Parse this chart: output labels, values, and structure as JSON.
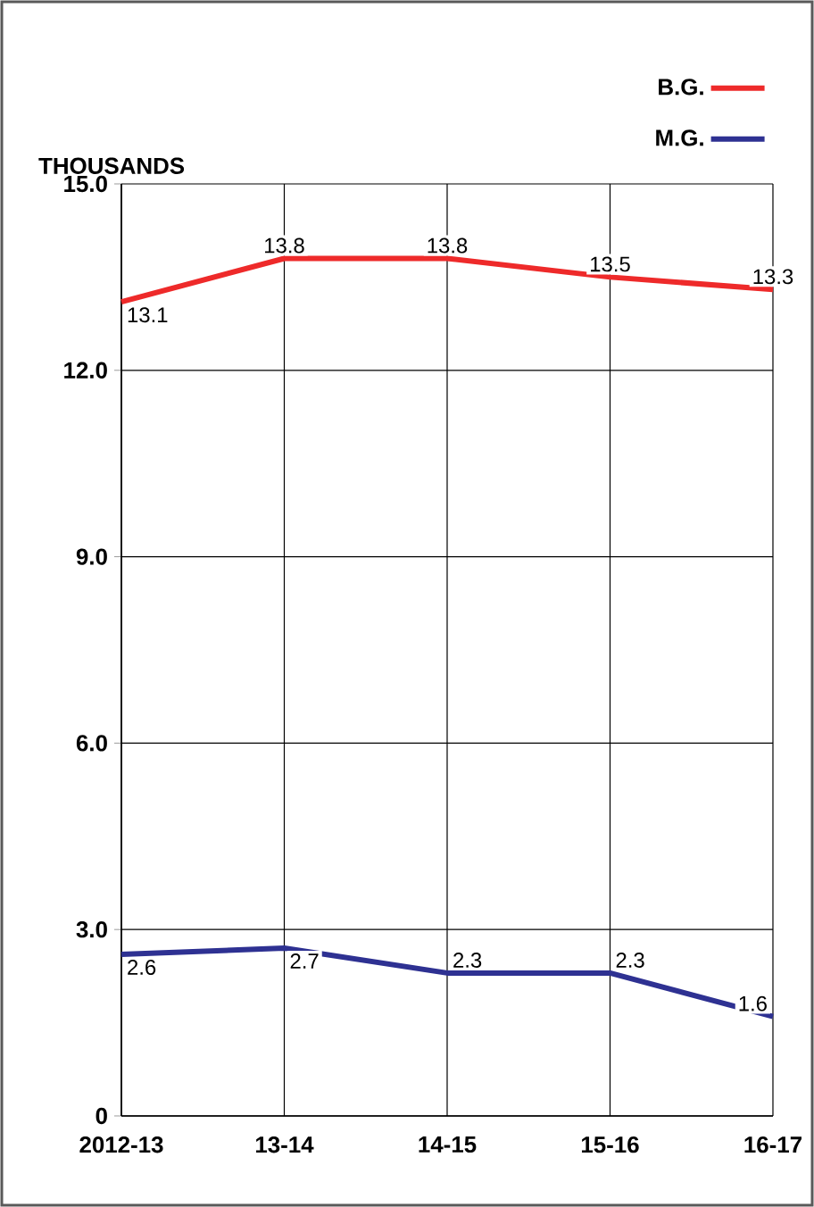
{
  "chart_data": {
    "type": "line",
    "ylabel": "THOUSANDS",
    "categories": [
      "2012-13",
      "13-14",
      "14-15",
      "15-16",
      "16-17"
    ],
    "series": [
      {
        "name": "B.G.",
        "color": "#ee2a2a",
        "values": [
          13.1,
          13.8,
          13.8,
          13.5,
          13.3
        ]
      },
      {
        "name": "M.G.",
        "color": "#2e3192",
        "values": [
          2.6,
          2.7,
          2.3,
          2.3,
          1.6
        ]
      }
    ],
    "ylim": [
      0,
      15
    ],
    "yticks": [
      {
        "value": 0,
        "label": "0"
      },
      {
        "value": 3,
        "label": "3.0"
      },
      {
        "value": 6,
        "label": "6.0"
      },
      {
        "value": 9,
        "label": "9.0"
      },
      {
        "value": 12,
        "label": "12.0"
      },
      {
        "value": 15,
        "label": "15.0"
      }
    ],
    "grid": true,
    "legend": "top right",
    "data_labels": true,
    "marker": "none",
    "line_style": "solid"
  }
}
